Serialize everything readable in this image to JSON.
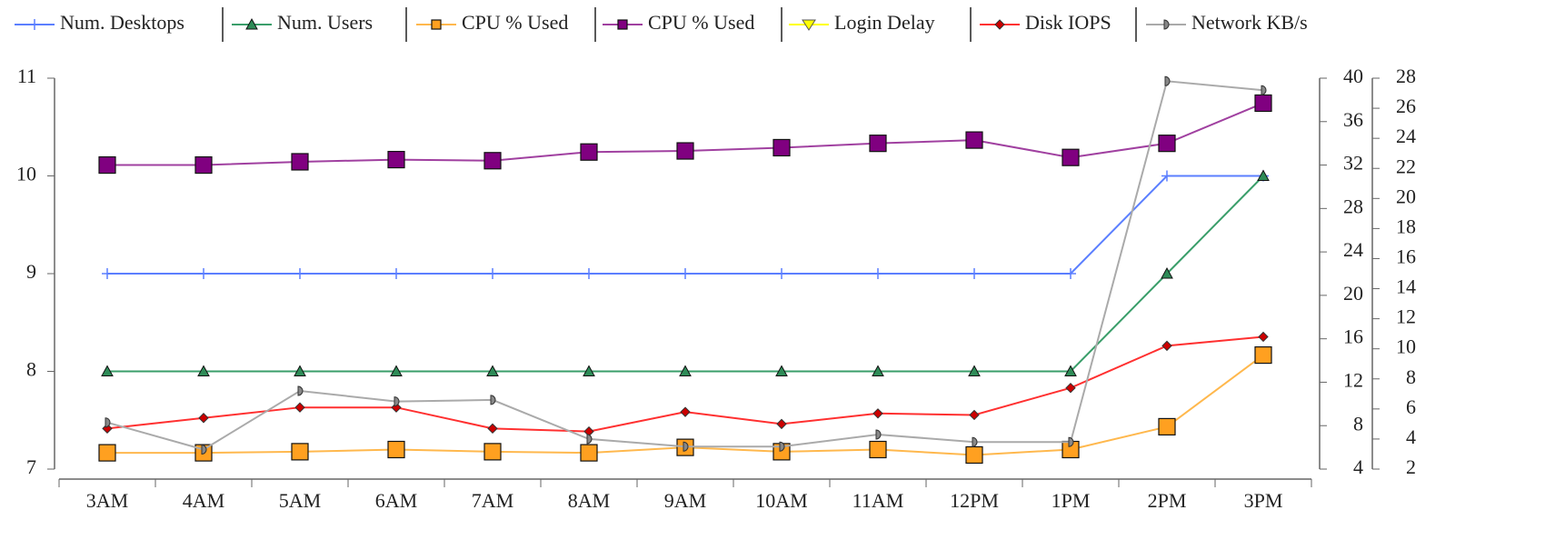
{
  "chart_data": {
    "type": "line",
    "categories": [
      "3AM",
      "4AM",
      "5AM",
      "6AM",
      "7AM",
      "8AM",
      "9AM",
      "10AM",
      "11AM",
      "12PM",
      "1PM",
      "2PM",
      "3PM"
    ],
    "series": [
      {
        "name": "Num. Desktops",
        "color": "#5b7fff",
        "marker": "plus",
        "values": [
          9,
          9,
          9,
          9,
          9,
          9,
          9,
          9,
          9,
          9,
          9,
          10,
          10
        ]
      },
      {
        "name": "Num. Users",
        "color": "#3a9e6a",
        "marker": "triangle",
        "values": [
          8,
          8,
          8,
          8,
          8,
          8,
          8,
          8,
          8,
          8,
          8,
          9,
          10
        ]
      },
      {
        "name": "CPU % Used",
        "color": "#ffb84d",
        "marker": "square",
        "axis": "y2",
        "values": [
          5.5,
          5.5,
          5.6,
          5.8,
          5.6,
          5.5,
          6.0,
          5.6,
          5.8,
          5.3,
          5.8,
          7.9,
          14.5
        ]
      },
      {
        "name": "CPU % Used",
        "color": "#a040a0",
        "marker": "square",
        "axis": "y2",
        "values": [
          32.0,
          32.0,
          32.3,
          32.5,
          32.4,
          33.2,
          33.3,
          33.6,
          34.0,
          34.3,
          32.7,
          34.0,
          37.7
        ]
      },
      {
        "name": "Login Delay",
        "color": "#ffff00",
        "marker": "triangle-down",
        "values": [
          null,
          null,
          null,
          null,
          null,
          null,
          null,
          null,
          null,
          null,
          null,
          null,
          null
        ]
      },
      {
        "name": "Disk IOPS",
        "color": "#ff3030",
        "marker": "diamond",
        "axis": "y3",
        "values": [
          4.7,
          5.4,
          6.1,
          6.1,
          4.7,
          4.5,
          5.8,
          5.0,
          5.7,
          5.6,
          7.4,
          10.2,
          10.8
        ]
      },
      {
        "name": "Network KB/s",
        "color": "#aaaaaa",
        "marker": "half",
        "axis": "y3",
        "values": [
          5.1,
          3.3,
          7.2,
          6.5,
          6.6,
          4.0,
          3.5,
          3.5,
          4.3,
          3.8,
          3.8,
          27.8,
          27.2
        ]
      }
    ],
    "ylim": [
      7,
      11
    ],
    "yticks": [
      7,
      8,
      9,
      10,
      11
    ],
    "y2lim": [
      4,
      40
    ],
    "y2ticks": [
      4,
      8,
      12,
      16,
      20,
      24,
      28,
      32,
      36,
      40
    ],
    "y3lim": [
      2,
      28
    ],
    "y3ticks": [
      2,
      4,
      6,
      8,
      10,
      12,
      14,
      16,
      18,
      20,
      22,
      24,
      26,
      28
    ]
  }
}
